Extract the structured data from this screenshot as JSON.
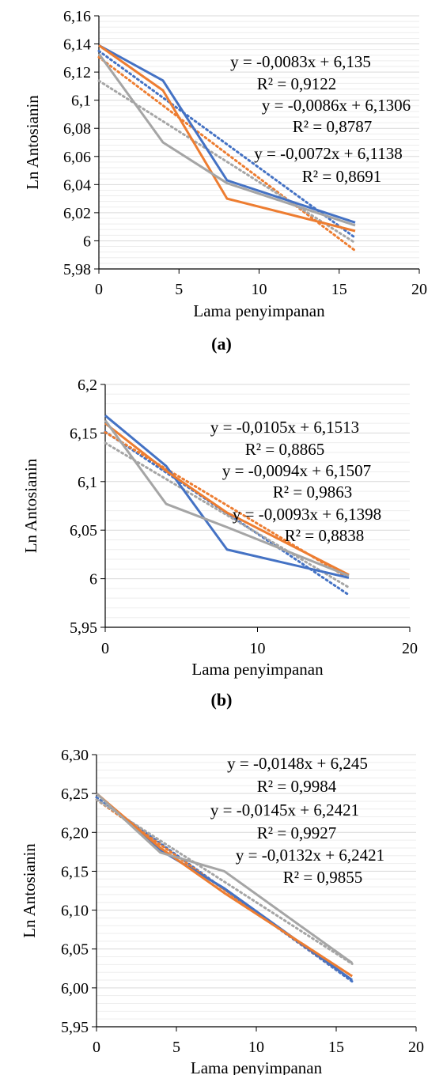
{
  "chart_data": [
    {
      "type": "line",
      "panel_label": "(a)",
      "xlabel": "Lama penyimpanan",
      "ylabel": "Ln Antosianin",
      "xlim": [
        0,
        20
      ],
      "ylim": [
        5.98,
        6.16
      ],
      "x_ticks": [
        0,
        5,
        10,
        15,
        20
      ],
      "x_tick_labels": [
        "0",
        "5",
        "10",
        "15",
        "20"
      ],
      "y_ticks": [
        5.98,
        6.0,
        6.02,
        6.04,
        6.06,
        6.08,
        6.1,
        6.12,
        6.14,
        6.16
      ],
      "y_tick_labels": [
        "5,98",
        "6",
        "6,02",
        "6,04",
        "6,06",
        "6,08",
        "6,1",
        "6,12",
        "6,14",
        "6,16"
      ],
      "grid": true,
      "x": [
        0,
        4,
        8,
        16
      ],
      "series": [
        {
          "color": "#4472C4",
          "values": [
            6.139,
            6.114,
            6.043,
            6.013
          ]
        },
        {
          "color": "#ED7D31",
          "values": [
            6.139,
            6.107,
            6.03,
            6.007
          ]
        },
        {
          "color": "#A5A5A5",
          "values": [
            6.133,
            6.07,
            6.041,
            6.011
          ]
        }
      ],
      "trendlines": [
        {
          "color": "#4472C4",
          "slope": -0.0083,
          "intercept": 6.135
        },
        {
          "color": "#ED7D31",
          "slope": -0.0086,
          "intercept": 6.1306
        },
        {
          "color": "#A5A5A5",
          "slope": -0.0072,
          "intercept": 6.1138
        }
      ],
      "annotations": [
        "y = -0,0083x + 6,135",
        "R² = 0,9122",
        "y = -0,0086x + 6,1306",
        "R² = 0,8787",
        "y = -0,0072x + 6,1138",
        "R² = 0,8691"
      ]
    },
    {
      "type": "line",
      "panel_label": "(b)",
      "xlabel": "Lama penyimpanan",
      "ylabel": "Ln Antosianin",
      "xlim": [
        0,
        20
      ],
      "ylim": [
        5.95,
        6.2
      ],
      "x_ticks": [
        0,
        10,
        20
      ],
      "x_tick_labels": [
        "0",
        "10",
        "20"
      ],
      "y_ticks": [
        5.95,
        6.0,
        6.05,
        6.1,
        6.15,
        6.2
      ],
      "y_tick_labels": [
        "5,95",
        "6",
        "6,05",
        "6,1",
        "6,15",
        "6,2"
      ],
      "grid": true,
      "x": [
        0,
        4,
        8,
        16
      ],
      "series": [
        {
          "color": "#4472C4",
          "values": [
            6.168,
            6.116,
            6.03,
            6.001
          ]
        },
        {
          "color": "#ED7D31",
          "values": [
            6.16,
            6.111,
            6.068,
            6.004
          ]
        },
        {
          "color": "#A5A5A5",
          "values": [
            6.163,
            6.077,
            6.053,
            6.003
          ]
        }
      ],
      "trendlines": [
        {
          "color": "#4472C4",
          "slope": -0.0105,
          "intercept": 6.1513
        },
        {
          "color": "#ED7D31",
          "slope": -0.0094,
          "intercept": 6.1507
        },
        {
          "color": "#A5A5A5",
          "slope": -0.0093,
          "intercept": 6.1398
        }
      ],
      "annotations": [
        "y = -0,0105x + 6,1513",
        "R² = 0,8865",
        "y = -0,0094x + 6,1507",
        "R² = 0,9863",
        "y = -0,0093x + 6,1398",
        "R² = 0,8838"
      ]
    },
    {
      "type": "line",
      "panel_label": "(c)",
      "xlabel": "Lama penyimpanan",
      "ylabel": "Ln Antosianin",
      "xlim": [
        0,
        20
      ],
      "ylim": [
        5.95,
        6.3
      ],
      "x_ticks": [
        0,
        5,
        10,
        15,
        20
      ],
      "x_tick_labels": [
        "0",
        "5",
        "10",
        "15",
        "20"
      ],
      "y_ticks": [
        5.95,
        6.0,
        6.05,
        6.1,
        6.15,
        6.2,
        6.25,
        6.3
      ],
      "y_tick_labels": [
        "5,95",
        "6,00",
        "6,05",
        "6,10",
        "6,15",
        "6,20",
        "6,25",
        "6,30"
      ],
      "grid": true,
      "x": [
        0,
        4,
        8,
        16
      ],
      "series": [
        {
          "color": "#4472C4",
          "values": [
            6.25,
            6.177,
            6.128,
            6.01
          ]
        },
        {
          "color": "#ED7D31",
          "values": [
            6.25,
            6.18,
            6.122,
            6.015
          ]
        },
        {
          "color": "#A5A5A5",
          "values": [
            6.25,
            6.174,
            6.15,
            6.032
          ]
        }
      ],
      "trendlines": [
        {
          "color": "#4472C4",
          "slope": -0.0148,
          "intercept": 6.245
        },
        {
          "color": "#ED7D31",
          "slope": -0.0145,
          "intercept": 6.2421
        },
        {
          "color": "#A5A5A5",
          "slope": -0.0132,
          "intercept": 6.2421
        }
      ],
      "annotations": [
        "y = -0,0148x + 6,245",
        "R² = 0,9984",
        "y = -0,0145x + 6,2421",
        "R² = 0,9927",
        "y = -0,0132x + 6,2421",
        "R² = 0,9855"
      ]
    }
  ]
}
